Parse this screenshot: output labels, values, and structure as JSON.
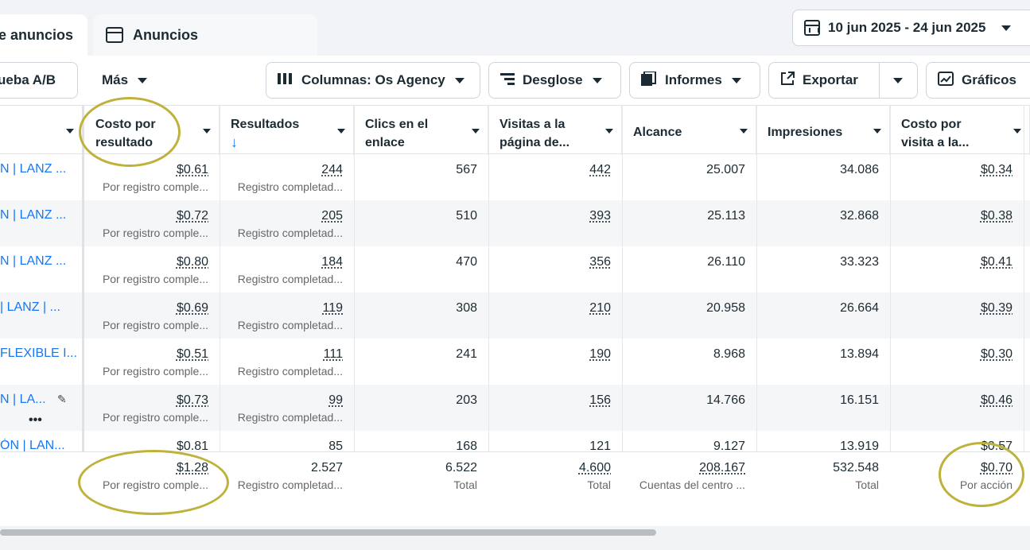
{
  "tabs": [
    {
      "label": "e anuncios"
    },
    {
      "label": "Anuncios"
    }
  ],
  "date_range": {
    "label": "10 jun 2025 - 24 jun 2025"
  },
  "toolbar": {
    "ab_test": "ueba A/B",
    "more": "Más",
    "columns": "Columnas: Os Agency",
    "breakdown": "Desglose",
    "reports": "Informes",
    "export": "Exportar",
    "charts": "Gráficos"
  },
  "columns": [
    {
      "label": "Costo por resultado"
    },
    {
      "label": "Resultados",
      "sort": "↓"
    },
    {
      "label": "Clics en el enlace"
    },
    {
      "label": "Visitas a la página de..."
    },
    {
      "label": "Alcance"
    },
    {
      "label": "Impresiones"
    },
    {
      "label": "Costo por visita a la..."
    }
  ],
  "rows": [
    {
      "name": "N | LANZ ...",
      "cost": "$0.61",
      "cost_sub": "Por registro comple...",
      "results": "244",
      "results_sub": "Registro completad...",
      "clicks": "567",
      "visits": "442",
      "reach": "25.007",
      "impressions": "34.086",
      "cpv": "$0.34"
    },
    {
      "name": "N | LANZ ...",
      "cost": "$0.72",
      "cost_sub": "Por registro comple...",
      "results": "205",
      "results_sub": "Registro completad...",
      "clicks": "510",
      "visits": "393",
      "reach": "25.113",
      "impressions": "32.868",
      "cpv": "$0.38"
    },
    {
      "name": "N | LANZ ...",
      "cost": "$0.80",
      "cost_sub": "Por registro comple...",
      "results": "184",
      "results_sub": "Registro completad...",
      "clicks": "470",
      "visits": "356",
      "reach": "26.110",
      "impressions": "33.323",
      "cpv": "$0.41"
    },
    {
      "name": "| LANZ | ...",
      "cost": "$0.69",
      "cost_sub": "Por registro comple...",
      "results": "119",
      "results_sub": "Registro completad...",
      "clicks": "308",
      "visits": "210",
      "reach": "20.958",
      "impressions": "26.664",
      "cpv": "$0.39"
    },
    {
      "name": "FLEXIBLE I...",
      "cost": "$0.51",
      "cost_sub": "Por registro comple...",
      "results": "111",
      "results_sub": "Registro completad...",
      "clicks": "241",
      "visits": "190",
      "reach": "8.968",
      "impressions": "13.894",
      "cpv": "$0.30"
    },
    {
      "name": "N | LA...",
      "cost": "$0.73",
      "cost_sub": "Por registro comple...",
      "results": "99",
      "results_sub": "Registro completad...",
      "clicks": "203",
      "visits": "156",
      "reach": "14.766",
      "impressions": "16.151",
      "cpv": "$0.46"
    },
    {
      "name": "ÓN | LAN...",
      "cost": "$0.81",
      "cost_sub": "",
      "results": "85",
      "results_sub": "",
      "clicks": "168",
      "visits": "121",
      "reach": "9.127",
      "impressions": "13.919",
      "cpv": "$0.57"
    }
  ],
  "totals": {
    "cost": "$1.28",
    "cost_sub": "Por registro comple...",
    "results": "2.527",
    "results_sub": "Registro completad...",
    "clicks": "6.522",
    "clicks_sub": "Total",
    "visits": "4.600",
    "visits_sub": "Total",
    "reach": "208.167",
    "reach_sub": "Cuentas del centro ...",
    "impressions": "532.548",
    "impressions_sub": "Total",
    "cpv": "$0.70",
    "cpv_sub": "Por acción"
  },
  "colors": {
    "link": "#1877f2",
    "highlight_ring": "#bfb23a"
  }
}
